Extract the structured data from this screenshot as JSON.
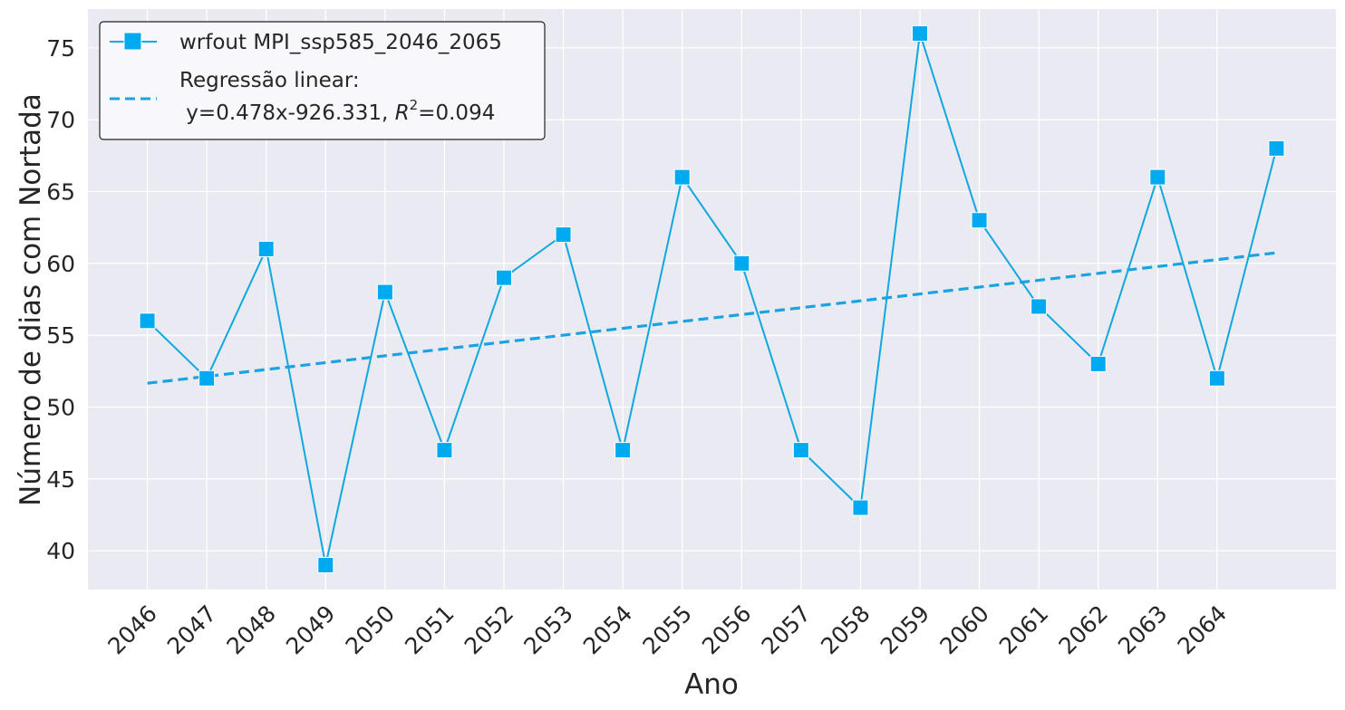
{
  "chart_data": {
    "type": "line",
    "xlabel": "Ano",
    "ylabel": "Número de dias com Nortada",
    "x_tick_labels": [
      "2046",
      "2047",
      "2048",
      "2049",
      "2050",
      "2051",
      "2052",
      "2053",
      "2054",
      "2055",
      "2056",
      "2057",
      "2058",
      "2059",
      "2060",
      "2061",
      "2062",
      "2063",
      "2064"
    ],
    "y_ticks": [
      40,
      45,
      50,
      55,
      60,
      65,
      70,
      75
    ],
    "ylim": [
      37.3,
      77.7
    ],
    "xlim": [
      2045.0,
      2066.0
    ],
    "grid": true,
    "legend_position": "top-left",
    "series": [
      {
        "name": "wrfout MPI_ssp585_2046_2065",
        "style": "line-square-markers",
        "color": "#0fa8df",
        "x": [
          2046,
          2047,
          2048,
          2049,
          2050,
          2051,
          2052,
          2053,
          2054,
          2055,
          2056,
          2057,
          2058,
          2059,
          2060,
          2061,
          2062,
          2063,
          2064,
          2065
        ],
        "values": [
          56,
          52,
          61,
          39,
          58,
          47,
          59,
          62,
          47,
          66,
          60,
          47,
          43,
          76,
          63,
          57,
          53,
          66,
          52,
          68
        ]
      },
      {
        "name": "Regressão linear:",
        "name_line2": " y=0.478x-926.331, ",
        "name_r2": "R",
        "name_r2_sup": "2",
        "name_r2_value": "=0.094",
        "style": "dashed",
        "color": "#1aa3e0",
        "slope": 0.478,
        "intercept": -926.331,
        "x_range": [
          2046,
          2065
        ]
      }
    ],
    "colors": {
      "plot_background": "#eaeaf2",
      "grid": "#ffffff",
      "marker_fill": "#00aaf0",
      "marker_edge": "#ffffff",
      "legend_background": "#f8f8fc",
      "legend_border": "#222222",
      "text": "#262626"
    }
  }
}
